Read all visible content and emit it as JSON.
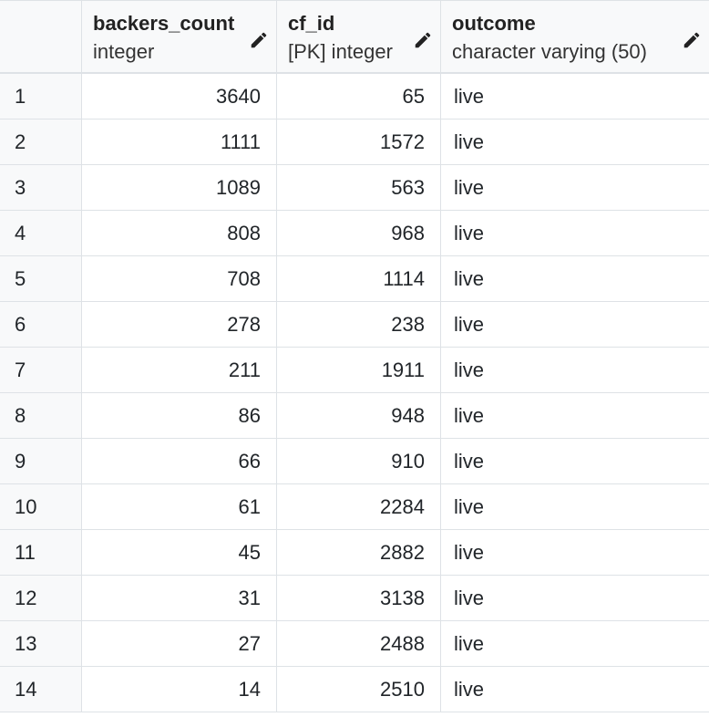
{
  "columns": [
    {
      "name": "backers_count",
      "type": "integer"
    },
    {
      "name": "cf_id",
      "type": "[PK] integer"
    },
    {
      "name": "outcome",
      "type": "character varying (50)"
    }
  ],
  "rows": [
    {
      "n": "1",
      "backers_count": "3640",
      "cf_id": "65",
      "outcome": "live"
    },
    {
      "n": "2",
      "backers_count": "1111",
      "cf_id": "1572",
      "outcome": "live"
    },
    {
      "n": "3",
      "backers_count": "1089",
      "cf_id": "563",
      "outcome": "live"
    },
    {
      "n": "4",
      "backers_count": "808",
      "cf_id": "968",
      "outcome": "live"
    },
    {
      "n": "5",
      "backers_count": "708",
      "cf_id": "1114",
      "outcome": "live"
    },
    {
      "n": "6",
      "backers_count": "278",
      "cf_id": "238",
      "outcome": "live"
    },
    {
      "n": "7",
      "backers_count": "211",
      "cf_id": "1911",
      "outcome": "live"
    },
    {
      "n": "8",
      "backers_count": "86",
      "cf_id": "948",
      "outcome": "live"
    },
    {
      "n": "9",
      "backers_count": "66",
      "cf_id": "910",
      "outcome": "live"
    },
    {
      "n": "10",
      "backers_count": "61",
      "cf_id": "2284",
      "outcome": "live"
    },
    {
      "n": "11",
      "backers_count": "45",
      "cf_id": "2882",
      "outcome": "live"
    },
    {
      "n": "12",
      "backers_count": "31",
      "cf_id": "3138",
      "outcome": "live"
    },
    {
      "n": "13",
      "backers_count": "27",
      "cf_id": "2488",
      "outcome": "live"
    },
    {
      "n": "14",
      "backers_count": "14",
      "cf_id": "2510",
      "outcome": "live"
    }
  ],
  "icons": {
    "edit": "pencil-icon"
  }
}
